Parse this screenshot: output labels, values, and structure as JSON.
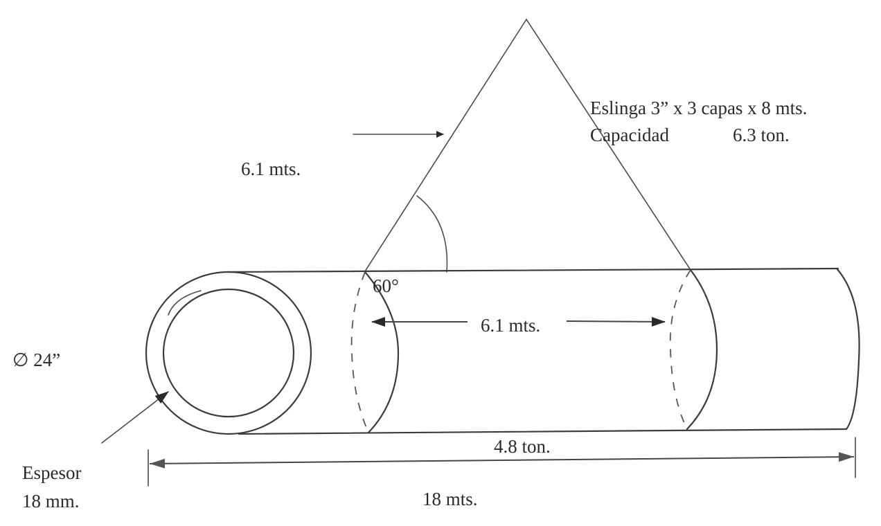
{
  "labels": {
    "sling_spec": "Eslinga 3” x 3 capas x 8 mts.",
    "capacity_label": "Capacidad",
    "capacity_value": "6.3 ton.",
    "sling_length": "6.1 mts.",
    "angle": "60°",
    "span": "6.1 mts.",
    "diameter": "∅ 24”",
    "thickness_label": "Espesor",
    "thickness_value": "18 mm.",
    "weight": "4.8 ton.",
    "length": "18 mts."
  },
  "colors": {
    "ink": "#2a2a2a",
    "line": "#3b3b3b",
    "background": "#ffffff"
  }
}
